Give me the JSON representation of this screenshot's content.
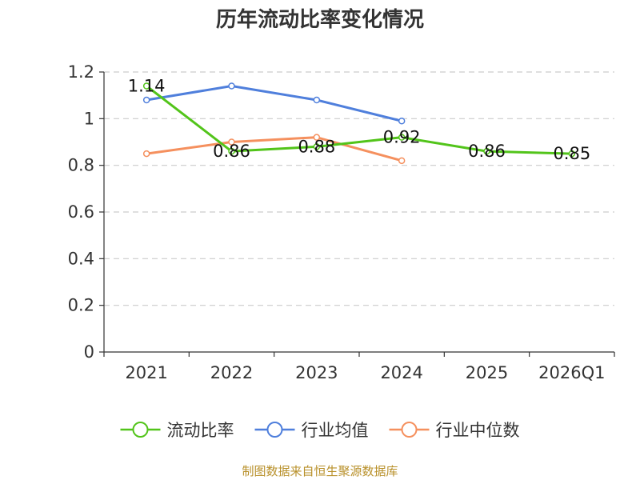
{
  "chart_data": {
    "type": "line",
    "title": "历年流动比率变化情况",
    "categories": [
      "2021",
      "2022",
      "2023",
      "2024",
      "2025",
      "2026Q1"
    ],
    "series": [
      {
        "name": "流动比率",
        "color": "#52c41a",
        "values": [
          1.14,
          0.86,
          0.88,
          0.92,
          0.86,
          0.85
        ],
        "labels": [
          "1.14",
          "0.86",
          "0.88",
          "0.92",
          "0.86",
          "0.85"
        ]
      },
      {
        "name": "行业均值",
        "color": "#4f7fdc",
        "values": [
          1.08,
          1.14,
          1.08,
          0.99,
          null,
          null
        ]
      },
      {
        "name": "行业中位数",
        "color": "#f5905e",
        "values": [
          0.85,
          0.9,
          0.92,
          0.82,
          null,
          null
        ]
      }
    ],
    "y_ticks": [
      "0",
      "0.2",
      "0.4",
      "0.6",
      "0.8",
      "1",
      "1.2"
    ],
    "ylim": [
      0,
      1.2
    ],
    "grid": true,
    "legend_position": "bottom-center",
    "source": "制图数据来自恒生聚源数据库"
  }
}
